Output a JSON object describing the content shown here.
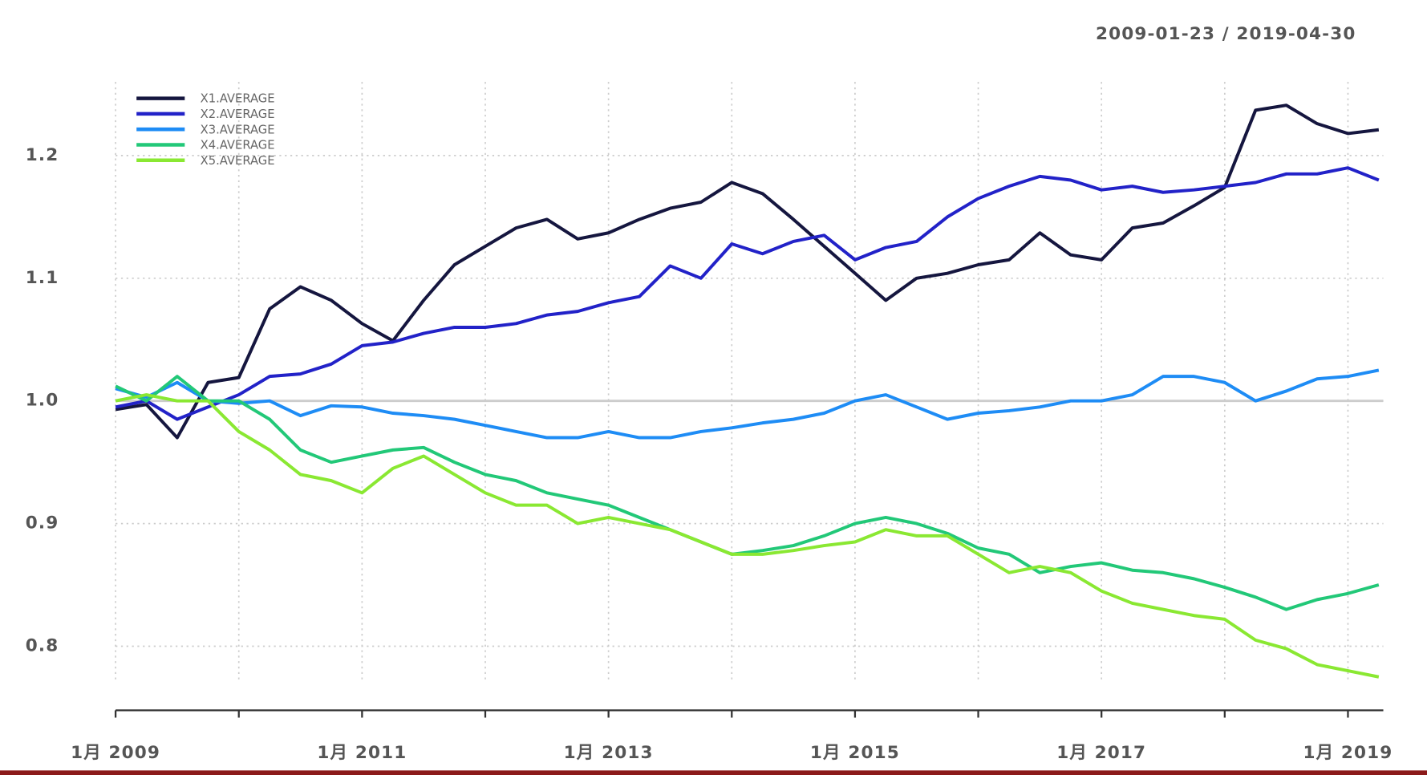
{
  "chart_data": {
    "type": "line",
    "title": "2009-01-23 / 2019-04-30",
    "x": [
      "2009-01",
      "2009-04",
      "2009-07",
      "2009-10",
      "2010-01",
      "2010-04",
      "2010-07",
      "2010-10",
      "2011-01",
      "2011-04",
      "2011-07",
      "2011-10",
      "2012-01",
      "2012-04",
      "2012-07",
      "2012-10",
      "2013-01",
      "2013-04",
      "2013-07",
      "2013-10",
      "2014-01",
      "2014-04",
      "2014-07",
      "2014-10",
      "2015-01",
      "2015-04",
      "2015-07",
      "2015-10",
      "2016-01",
      "2016-04",
      "2016-07",
      "2016-10",
      "2017-01",
      "2017-04",
      "2017-07",
      "2017-10",
      "2018-01",
      "2018-04",
      "2018-07",
      "2018-10",
      "2019-01",
      "2019-04"
    ],
    "series": [
      {
        "name": "X1.AVERAGE",
        "color": "#15163f",
        "values": [
          0.993,
          0.997,
          0.97,
          1.015,
          1.019,
          1.075,
          1.093,
          1.082,
          1.063,
          1.049,
          1.082,
          1.111,
          1.126,
          1.141,
          1.148,
          1.132,
          1.137,
          1.148,
          1.157,
          1.162,
          1.178,
          1.169,
          1.148,
          1.126,
          1.104,
          1.082,
          1.1,
          1.104,
          1.111,
          1.115,
          1.137,
          1.119,
          1.115,
          1.141,
          1.145,
          1.159,
          1.174,
          1.237,
          1.241,
          1.226,
          1.218,
          1.221
        ]
      },
      {
        "name": "X2.AVERAGE",
        "color": "#2222c8",
        "values": [
          0.995,
          1.0,
          0.985,
          0.995,
          1.005,
          1.02,
          1.022,
          1.03,
          1.045,
          1.048,
          1.055,
          1.06,
          1.06,
          1.063,
          1.07,
          1.073,
          1.08,
          1.085,
          1.11,
          1.1,
          1.128,
          1.12,
          1.13,
          1.135,
          1.115,
          1.125,
          1.13,
          1.15,
          1.165,
          1.175,
          1.183,
          1.18,
          1.172,
          1.175,
          1.17,
          1.172,
          1.175,
          1.178,
          1.185,
          1.185,
          1.19,
          1.18
        ]
      },
      {
        "name": "X3.AVERAGE",
        "color": "#1e8cf5",
        "values": [
          1.01,
          1.003,
          1.015,
          1.0,
          0.998,
          1.0,
          0.988,
          0.996,
          0.995,
          0.99,
          0.988,
          0.985,
          0.98,
          0.975,
          0.97,
          0.97,
          0.975,
          0.97,
          0.97,
          0.975,
          0.978,
          0.982,
          0.985,
          0.99,
          1.0,
          1.005,
          0.995,
          0.985,
          0.99,
          0.992,
          0.995,
          1.0,
          1.0,
          1.005,
          1.02,
          1.02,
          1.015,
          1.0,
          1.008,
          1.018,
          1.02,
          1.025
        ]
      },
      {
        "name": "X4.AVERAGE",
        "color": "#22c878",
        "values": [
          1.012,
          1.0,
          1.02,
          1.0,
          1.0,
          0.985,
          0.96,
          0.95,
          0.955,
          0.96,
          0.962,
          0.95,
          0.94,
          0.935,
          0.925,
          0.92,
          0.915,
          0.905,
          0.895,
          0.885,
          0.875,
          0.878,
          0.882,
          0.89,
          0.9,
          0.905,
          0.9,
          0.892,
          0.88,
          0.875,
          0.86,
          0.865,
          0.868,
          0.862,
          0.86,
          0.855,
          0.848,
          0.84,
          0.83,
          0.838,
          0.843,
          0.85
        ]
      },
      {
        "name": "X5.AVERAGE",
        "color": "#8ae832",
        "values": [
          1.0,
          1.005,
          1.0,
          1.0,
          0.975,
          0.96,
          0.94,
          0.935,
          0.925,
          0.945,
          0.955,
          0.94,
          0.925,
          0.915,
          0.915,
          0.9,
          0.905,
          0.9,
          0.895,
          0.885,
          0.875,
          0.875,
          0.878,
          0.882,
          0.885,
          0.895,
          0.89,
          0.89,
          0.875,
          0.86,
          0.865,
          0.86,
          0.845,
          0.835,
          0.83,
          0.825,
          0.822,
          0.805,
          0.798,
          0.785,
          0.78,
          0.775
        ]
      }
    ],
    "ylim": [
      0.77,
      1.26
    ],
    "yticks": [
      0.8,
      0.9,
      {
        "value": 1,
        "label": "1.0"
      },
      1.1,
      1.2
    ],
    "hline": 1,
    "xlim": [
      "2009-01",
      "2019-04"
    ],
    "xticks": [
      {
        "value": "2009-01",
        "label": "1月 2009"
      },
      {
        "value": "2011-01",
        "label": "1月 2011"
      },
      {
        "value": "2013-01",
        "label": "1月 2013"
      },
      {
        "value": "2015-01",
        "label": "1月 2015"
      },
      {
        "value": "2017-01",
        "label": "1月 2017"
      },
      {
        "value": "2019-01",
        "label": "1月 2019"
      }
    ],
    "xminor_ticks": [
      "2010-01",
      "2012-01",
      "2014-01",
      "2016-01",
      "2018-01"
    ],
    "grid": true,
    "legend": "top-left"
  }
}
